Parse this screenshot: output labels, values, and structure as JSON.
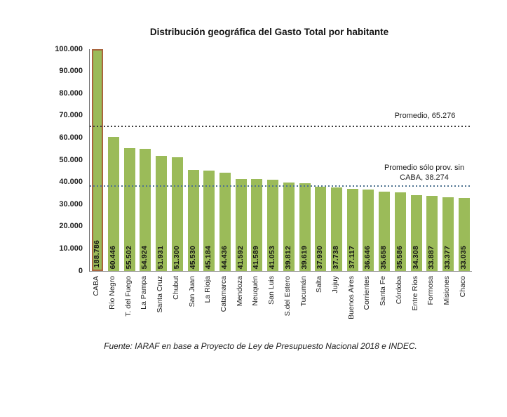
{
  "page": {
    "title": "Distribución geográfica del Gasto Total por habitante",
    "source_note": "Fuente: IARAF en base a Proyecto de Ley de Presupuesto Nacional 2018 e INDEC."
  },
  "chart_data": {
    "type": "bar",
    "title": "Distribución geográfica del Gasto Total por habitante",
    "xlabel": "",
    "ylabel": "",
    "ylim": [
      0,
      100000
    ],
    "grid": false,
    "legend": false,
    "note": "CABA bar exceeds the y-axis maximum and is clipped at 100.000",
    "y_ticks": [
      {
        "value": 100000,
        "label": "100.000"
      },
      {
        "value": 90000,
        "label": "90.000"
      },
      {
        "value": 80000,
        "label": "80.000"
      },
      {
        "value": 70000,
        "label": "70.000"
      },
      {
        "value": 60000,
        "label": "60.000"
      },
      {
        "value": 50000,
        "label": "50.000"
      },
      {
        "value": 40000,
        "label": "40.000"
      },
      {
        "value": 30000,
        "label": "30.000"
      },
      {
        "value": 20000,
        "label": "20.000"
      },
      {
        "value": 10000,
        "label": "10.000"
      },
      {
        "value": 0,
        "label": "0"
      }
    ],
    "bars": [
      {
        "category": "CABA",
        "value": 188786,
        "label": "188.786",
        "clipped": true
      },
      {
        "category": "Río Negro",
        "value": 60446,
        "label": "60.446"
      },
      {
        "category": "T. del Fuego",
        "value": 55502,
        "label": "55.502"
      },
      {
        "category": "La Pampa",
        "value": 54924,
        "label": "54.924"
      },
      {
        "category": "Santa Cruz",
        "value": 51931,
        "label": "51.931"
      },
      {
        "category": "Chubut",
        "value": 51300,
        "label": "51.300"
      },
      {
        "category": "San Juan",
        "value": 45530,
        "label": "45.530"
      },
      {
        "category": "La Rioja",
        "value": 45184,
        "label": "45.184"
      },
      {
        "category": "Catamarca",
        "value": 44436,
        "label": "44.436"
      },
      {
        "category": "Mendoza",
        "value": 41592,
        "label": "41.592"
      },
      {
        "category": "Neuquén",
        "value": 41589,
        "label": "41.589"
      },
      {
        "category": "San Luis",
        "value": 41053,
        "label": "41.053"
      },
      {
        "category": "S.del Estero",
        "value": 39812,
        "label": "39.812"
      },
      {
        "category": "Tucumán",
        "value": 39619,
        "label": "39.619"
      },
      {
        "category": "Salta",
        "value": 37930,
        "label": "37.930"
      },
      {
        "category": "Jujuy",
        "value": 37738,
        "label": "37.738"
      },
      {
        "category": "Buenos Aires",
        "value": 37117,
        "label": "37.117"
      },
      {
        "category": "Corrientes",
        "value": 36646,
        "label": "36.646"
      },
      {
        "category": "Santa Fe",
        "value": 35658,
        "label": "35.658"
      },
      {
        "category": "Córdoba",
        "value": 35586,
        "label": "35.586"
      },
      {
        "category": "Entre Ríos",
        "value": 34308,
        "label": "34.308"
      },
      {
        "category": "Formosa",
        "value": 33887,
        "label": "33.887"
      },
      {
        "category": "Misiones",
        "value": 33377,
        "label": "33.377"
      },
      {
        "category": "Chaco",
        "value": 33035,
        "label": "33.035"
      }
    ],
    "annotations": [
      {
        "id": "promedio",
        "text": "Promedio, 65.276",
        "value": 65276,
        "line_color": "#3B3B3B",
        "line_style": "dotted"
      },
      {
        "id": "promedio-sin-caba",
        "text": "Promedio sólo prov. sin CABA, 38.274",
        "line1": "Promedio sólo prov. sin",
        "line2": "CABA, 38.274",
        "value": 38274,
        "line_color": "#4E7290",
        "line_style": "dotted"
      }
    ],
    "colors": {
      "bar_fill": "#9BBB59",
      "caba_bar_border": "#A9653E",
      "avg_line": "#3B3B3B",
      "avg_prov_line": "#4E7290",
      "axis": "#7F7F7F",
      "text": "#1A1A1A"
    }
  }
}
